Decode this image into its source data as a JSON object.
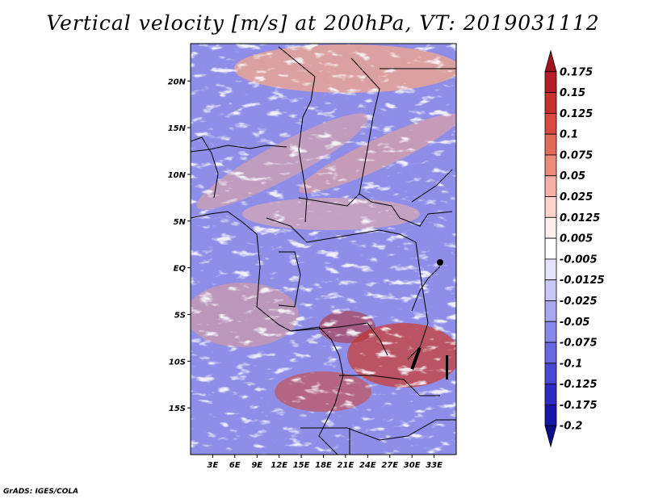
{
  "title": "Vertical velocity [m/s] at 200hPa, VT: 2019031112",
  "credit": "GrADS: IGES/COLA",
  "map": {
    "lat_range": [
      -20,
      24
    ],
    "lon_range": [
      0,
      36
    ],
    "lat_ticks": [
      "20N",
      "15N",
      "10N",
      "5N",
      "EQ",
      "5S",
      "10S",
      "15S"
    ],
    "lat_tick_values": [
      20,
      15,
      10,
      5,
      0,
      -5,
      -10,
      -15
    ],
    "lon_ticks": [
      "3E",
      "6E",
      "9E",
      "12E",
      "15E",
      "18E",
      "21E",
      "24E",
      "27E",
      "30E",
      "33E"
    ],
    "lon_tick_values": [
      3,
      6,
      9,
      12,
      15,
      18,
      21,
      24,
      27,
      30,
      33
    ]
  },
  "colorbar": {
    "levels": [
      "0.175",
      "0.15",
      "0.125",
      "0.1",
      "0.075",
      "0.05",
      "0.025",
      "0.0125",
      "0.005",
      "-0.005",
      "-0.0125",
      "-0.025",
      "-0.05",
      "-0.075",
      "-0.1",
      "-0.125",
      "-0.175",
      "-0.2"
    ],
    "colors": [
      "#a0141e",
      "#b41e26",
      "#c8322e",
      "#d84a40",
      "#e46a5a",
      "#ee8c7c",
      "#f6b0a4",
      "#fcd4cc",
      "#fff0ec",
      "#ffffff",
      "#e4e4fb",
      "#c8c8f6",
      "#a8a8f0",
      "#8888ea",
      "#6868e0",
      "#4848d4",
      "#2c2cc0",
      "#1818a8",
      "#0c0c8c"
    ]
  }
}
